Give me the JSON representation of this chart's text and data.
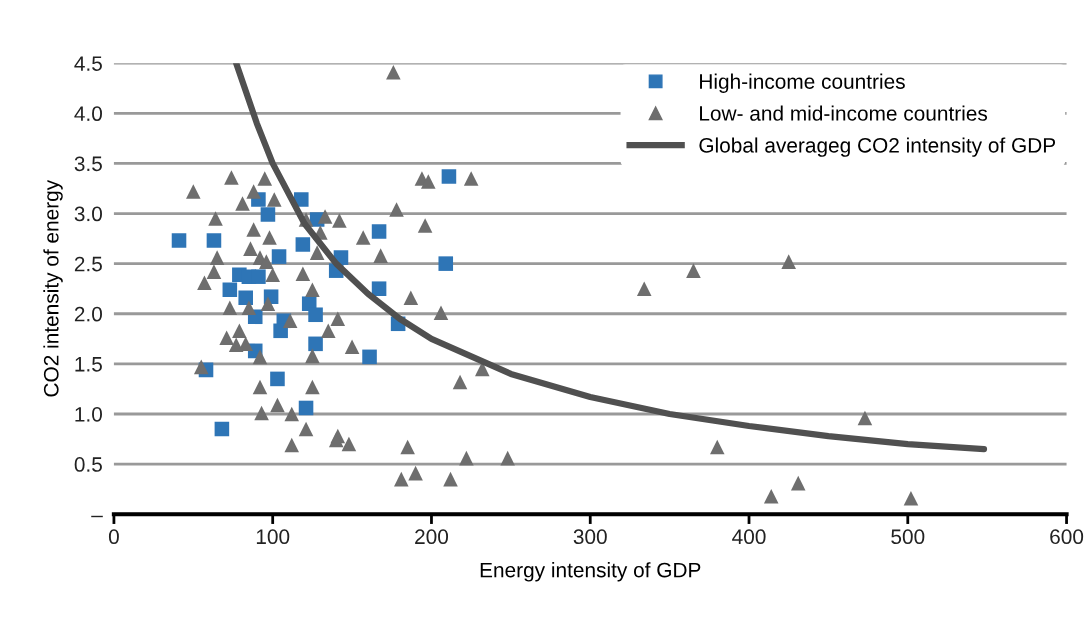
{
  "chart_data": {
    "type": "scatter",
    "xlabel": "Energy intensity of GDP",
    "ylabel": "CO2 intensity of energy",
    "xlim": [
      0,
      600
    ],
    "xticks": [
      0,
      100,
      200,
      300,
      400,
      500,
      600
    ],
    "ylim": [
      0,
      4.5
    ],
    "yticks": [
      {
        "value": 0,
        "label": "–"
      },
      {
        "value": 0.5,
        "label": "0.5"
      },
      {
        "value": 1.0,
        "label": "1.0"
      },
      {
        "value": 1.5,
        "label": "1.5"
      },
      {
        "value": 2.0,
        "label": "2.0"
      },
      {
        "value": 2.5,
        "label": "2.5"
      },
      {
        "value": 3.0,
        "label": "3.0"
      },
      {
        "value": 3.5,
        "label": "3.5"
      },
      {
        "value": 4.0,
        "label": "4.0"
      },
      {
        "value": 4.5,
        "label": "4.5"
      }
    ],
    "grid": "y",
    "legend": "top right",
    "series": [
      {
        "name": "High-income countries",
        "type": "scatter",
        "marker": "square",
        "color": "#2e75b6",
        "x": [
          41,
          63,
          118,
          91,
          97,
          211,
          167,
          104,
          119,
          143,
          140,
          209,
          79,
          85,
          91,
          167,
          73,
          83,
          99,
          123,
          127,
          89,
          107,
          105,
          179,
          127,
          89,
          161,
          58,
          103,
          121,
          68,
          128
        ],
        "values": [
          2.73,
          2.73,
          3.14,
          3.14,
          2.99,
          3.37,
          2.82,
          2.57,
          2.69,
          2.56,
          2.43,
          2.5,
          2.39,
          2.37,
          2.37,
          2.25,
          2.24,
          2.16,
          2.17,
          2.1,
          1.99,
          1.97,
          1.93,
          1.83,
          1.9,
          1.7,
          1.63,
          1.57,
          1.44,
          1.35,
          1.06,
          0.85,
          2.94
        ]
      },
      {
        "name": "Low- and mid-income countries",
        "type": "scatter",
        "marker": "triangle",
        "color": "#6e6e6e",
        "x": [
          176,
          50,
          74,
          95,
          88,
          81,
          101,
          64,
          88,
          98,
          65,
          86,
          92,
          96,
          63,
          57,
          100,
          119,
          125,
          73,
          85,
          97,
          111,
          71,
          79,
          77,
          83,
          92,
          125,
          135,
          141,
          150,
          55,
          92,
          125,
          93,
          103,
          112,
          121,
          112,
          141,
          140,
          148,
          121,
          133,
          142,
          130,
          128,
          157,
          168,
          178,
          194,
          198,
          225,
          196,
          187,
          206,
          218,
          232,
          185,
          181,
          190,
          212,
          222,
          248,
          334,
          365,
          425,
          380,
          414,
          431,
          473,
          502
        ],
        "values": [
          4.41,
          3.22,
          3.36,
          3.35,
          3.22,
          3.1,
          3.14,
          2.95,
          2.84,
          2.76,
          2.56,
          2.65,
          2.56,
          2.52,
          2.42,
          2.31,
          2.39,
          2.4,
          2.24,
          2.06,
          2.06,
          2.1,
          1.93,
          1.76,
          1.83,
          1.69,
          1.7,
          1.57,
          1.58,
          1.83,
          1.95,
          1.67,
          1.47,
          1.27,
          1.27,
          1.01,
          1.09,
          1.0,
          0.85,
          0.69,
          0.78,
          0.74,
          0.7,
          2.94,
          2.97,
          2.93,
          2.81,
          2.61,
          2.76,
          2.58,
          3.04,
          3.35,
          3.32,
          3.35,
          2.88,
          2.16,
          2.01,
          1.32,
          1.45,
          0.67,
          0.35,
          0.41,
          0.35,
          0.56,
          0.56,
          2.25,
          2.43,
          2.52,
          0.67,
          0.18,
          0.31,
          0.96,
          0.16
        ]
      },
      {
        "name": "Global averageg CO2 intensity of GDP",
        "type": "line",
        "marker": "none",
        "color": "#505050",
        "x": [
          77,
          90,
          100,
          120,
          140,
          160,
          180,
          200,
          250,
          300,
          350,
          400,
          450,
          500,
          548
        ],
        "values": [
          4.5,
          3.9,
          3.5,
          2.9,
          2.5,
          2.2,
          1.95,
          1.75,
          1.4,
          1.17,
          1.0,
          0.88,
          0.78,
          0.7,
          0.65
        ]
      }
    ]
  }
}
